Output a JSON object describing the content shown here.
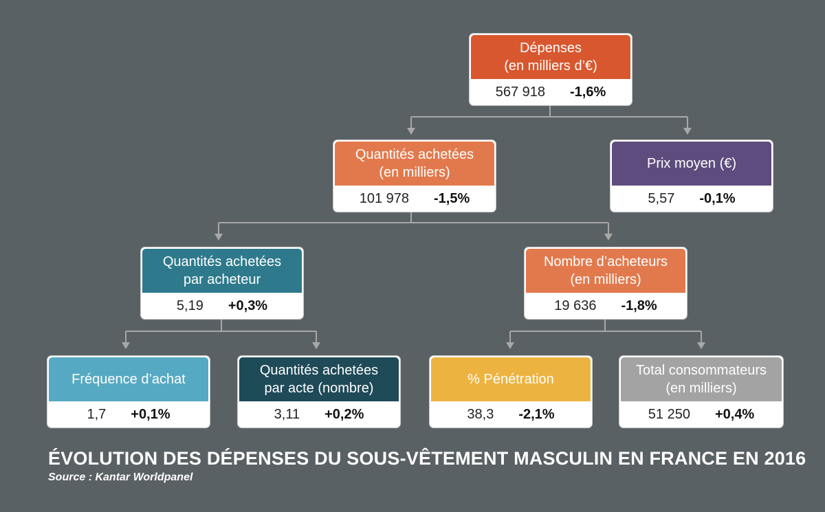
{
  "nodes": {
    "depenses": {
      "label": "Dépenses\n(en milliers d’€)",
      "value": "567 918",
      "change": "-1,6%",
      "color": "#d8572e"
    },
    "quantites": {
      "label": "Quantités achetées\n(en milliers)",
      "value": "101 978",
      "change": "-1,5%",
      "color": "#e2794d"
    },
    "prix": {
      "label": "Prix moyen (€)",
      "value": "5,57",
      "change": "-0,1%",
      "color": "#5e4c7e"
    },
    "qte_acheteur": {
      "label": "Quantités achetées\npar acheteur",
      "value": "5,19",
      "change": "+0,3%",
      "color": "#2e7a8c"
    },
    "nb_acheteurs": {
      "label": "Nombre d’acheteurs\n(en milliers)",
      "value": "19 636",
      "change": "-1,8%",
      "color": "#e2794d"
    },
    "frequence": {
      "label": "Fréquence d’achat",
      "value": "1,7",
      "change": "+0,1%",
      "color": "#56a9c2"
    },
    "qte_acte": {
      "label": "Quantités achetées\npar acte (nombre)",
      "value": "3,11",
      "change": "+0,2%",
      "color": "#1f4a57"
    },
    "penetration": {
      "label": "% Pénétration",
      "value": "38,3",
      "change": "-2,1%",
      "color": "#edb341"
    },
    "total_conso": {
      "label": "Total consommateurs\n(en milliers)",
      "value": "51 250",
      "change": "+0,4%",
      "color": "#a3a3a3"
    }
  },
  "caption": {
    "title": "ÉVOLUTION DES DÉPENSES DU SOUS-VÊTEMENT MASCULIN EN FRANCE EN 2016",
    "source": "Source : Kantar Worldpanel"
  },
  "colors": {
    "background": "#5a6164",
    "connector": "#a8a8a8"
  }
}
